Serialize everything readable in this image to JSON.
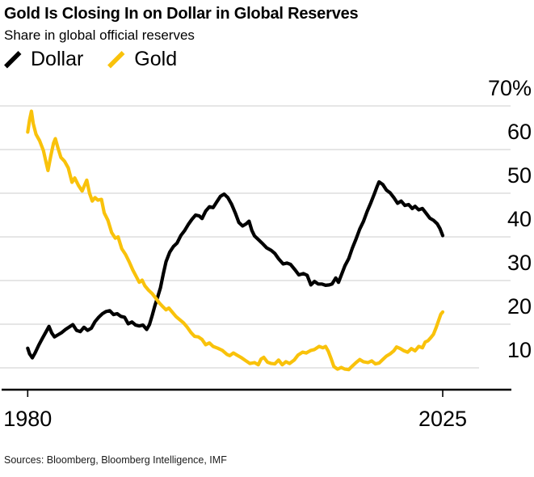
{
  "header": {
    "title": "Gold Is Closing In on Dollar in Global Reserves",
    "subtitle": "Share in global official reserves"
  },
  "legend": {
    "items": [
      {
        "label": "Dollar",
        "color": "#000000"
      },
      {
        "label": "Gold",
        "color": "#F9C20B"
      }
    ]
  },
  "chart_data": {
    "type": "line",
    "title": "Gold Is Closing In on Dollar in Global Reserves",
    "subtitle": "Share in global official reserves",
    "xlabel": "",
    "ylabel": "Share in global official reserves (%)",
    "x_domain": [
      1980,
      2025
    ],
    "y_baseline_value": 5,
    "y_gridline_values": [
      70,
      60,
      50,
      40,
      30,
      20,
      10
    ],
    "y_tick_labels": [
      "70%",
      "60",
      "50",
      "40",
      "30",
      "20",
      "10"
    ],
    "x_ticks": [
      {
        "year": 1980,
        "label": "1980"
      },
      {
        "year": 2025,
        "label": "2025"
      }
    ],
    "grid_on": true,
    "grid_color": "#DEDEDE",
    "axis_color": "#000000",
    "legend_position": "top-left",
    "series": [
      {
        "name": "Dollar",
        "color": "#000000",
        "points": [
          [
            1980.0,
            14.5
          ],
          [
            1980.2,
            13.2
          ],
          [
            1980.5,
            12.3
          ],
          [
            1980.8,
            13.4
          ],
          [
            1981.2,
            15.2
          ],
          [
            1981.6,
            16.8
          ],
          [
            1982.0,
            18.3
          ],
          [
            1982.3,
            19.5
          ],
          [
            1982.6,
            18.0
          ],
          [
            1982.9,
            17.1
          ],
          [
            1983.3,
            17.6
          ],
          [
            1983.7,
            18.1
          ],
          [
            1984.1,
            18.8
          ],
          [
            1984.6,
            19.5
          ],
          [
            1984.9,
            19.9
          ],
          [
            1985.3,
            18.6
          ],
          [
            1985.7,
            18.3
          ],
          [
            1986.1,
            19.3
          ],
          [
            1986.5,
            18.6
          ],
          [
            1986.9,
            19.1
          ],
          [
            1987.3,
            20.6
          ],
          [
            1987.7,
            21.6
          ],
          [
            1988.1,
            22.4
          ],
          [
            1988.5,
            22.9
          ],
          [
            1988.9,
            23.1
          ],
          [
            1989.3,
            22.2
          ],
          [
            1989.7,
            22.4
          ],
          [
            1990.1,
            21.8
          ],
          [
            1990.5,
            21.6
          ],
          [
            1990.9,
            20.1
          ],
          [
            1991.3,
            20.5
          ],
          [
            1991.7,
            19.8
          ],
          [
            1992.1,
            19.6
          ],
          [
            1992.5,
            19.8
          ],
          [
            1992.9,
            18.8
          ],
          [
            1993.2,
            19.9
          ],
          [
            1993.5,
            22.0
          ],
          [
            1993.8,
            24.3
          ],
          [
            1994.1,
            26.3
          ],
          [
            1994.4,
            28.4
          ],
          [
            1994.7,
            31.5
          ],
          [
            1995.0,
            34.3
          ],
          [
            1995.4,
            36.5
          ],
          [
            1995.8,
            37.8
          ],
          [
            1996.2,
            38.6
          ],
          [
            1996.6,
            40.3
          ],
          [
            1997.0,
            41.4
          ],
          [
            1997.4,
            42.8
          ],
          [
            1997.8,
            44.0
          ],
          [
            1998.2,
            45.0
          ],
          [
            1998.6,
            44.8
          ],
          [
            1998.9,
            44.2
          ],
          [
            1999.3,
            45.9
          ],
          [
            1999.7,
            46.9
          ],
          [
            2000.1,
            46.7
          ],
          [
            2000.5,
            48.0
          ],
          [
            2000.9,
            49.3
          ],
          [
            2001.3,
            49.8
          ],
          [
            2001.7,
            49.0
          ],
          [
            2002.1,
            47.5
          ],
          [
            2002.5,
            45.5
          ],
          [
            2002.9,
            43.3
          ],
          [
            2003.3,
            42.5
          ],
          [
            2003.7,
            43.0
          ],
          [
            2004.0,
            43.6
          ],
          [
            2004.3,
            41.5
          ],
          [
            2004.6,
            40.2
          ],
          [
            2005.0,
            39.4
          ],
          [
            2005.4,
            38.6
          ],
          [
            2005.9,
            37.5
          ],
          [
            2006.4,
            36.9
          ],
          [
            2006.8,
            36.2
          ],
          [
            2007.2,
            35.0
          ],
          [
            2007.7,
            33.8
          ],
          [
            2008.1,
            34.0
          ],
          [
            2008.5,
            33.7
          ],
          [
            2009.0,
            32.4
          ],
          [
            2009.4,
            31.3
          ],
          [
            2009.9,
            31.6
          ],
          [
            2010.3,
            31.2
          ],
          [
            2010.7,
            29.0
          ],
          [
            2011.1,
            29.8
          ],
          [
            2011.5,
            29.2
          ],
          [
            2011.9,
            29.2
          ],
          [
            2012.3,
            28.9
          ],
          [
            2012.7,
            29.0
          ],
          [
            2013.0,
            29.2
          ],
          [
            2013.4,
            30.6
          ],
          [
            2013.7,
            29.6
          ],
          [
            2014.0,
            31.2
          ],
          [
            2014.4,
            33.4
          ],
          [
            2014.8,
            35.0
          ],
          [
            2015.2,
            37.4
          ],
          [
            2015.6,
            39.5
          ],
          [
            2016.0,
            41.8
          ],
          [
            2016.4,
            43.5
          ],
          [
            2016.8,
            45.8
          ],
          [
            2017.2,
            47.8
          ],
          [
            2017.6,
            49.9
          ],
          [
            2017.9,
            51.6
          ],
          [
            2018.1,
            52.6
          ],
          [
            2018.5,
            52.0
          ],
          [
            2018.9,
            50.7
          ],
          [
            2019.3,
            50.1
          ],
          [
            2019.7,
            49.0
          ],
          [
            2020.1,
            47.7
          ],
          [
            2020.5,
            48.2
          ],
          [
            2020.9,
            47.2
          ],
          [
            2021.3,
            47.4
          ],
          [
            2021.7,
            46.5
          ],
          [
            2022.0,
            47.0
          ],
          [
            2022.4,
            46.2
          ],
          [
            2022.8,
            46.5
          ],
          [
            2023.2,
            45.4
          ],
          [
            2023.6,
            44.3
          ],
          [
            2024.0,
            43.8
          ],
          [
            2024.4,
            43.0
          ],
          [
            2024.7,
            41.9
          ],
          [
            2025.0,
            40.3
          ]
        ]
      },
      {
        "name": "Gold",
        "color": "#F9C20B",
        "points": [
          [
            1980.0,
            64.0
          ],
          [
            1980.2,
            66.8
          ],
          [
            1980.4,
            68.8
          ],
          [
            1980.6,
            66.0
          ],
          [
            1980.9,
            63.5
          ],
          [
            1981.3,
            62.0
          ],
          [
            1981.7,
            59.8
          ],
          [
            1982.0,
            57.0
          ],
          [
            1982.2,
            55.2
          ],
          [
            1982.5,
            58.5
          ],
          [
            1982.8,
            61.5
          ],
          [
            1983.0,
            62.5
          ],
          [
            1983.3,
            60.2
          ],
          [
            1983.6,
            58.2
          ],
          [
            1984.0,
            57.3
          ],
          [
            1984.4,
            55.8
          ],
          [
            1984.8,
            52.5
          ],
          [
            1985.1,
            53.5
          ],
          [
            1985.5,
            51.8
          ],
          [
            1985.9,
            50.5
          ],
          [
            1986.2,
            52.0
          ],
          [
            1986.4,
            53.0
          ],
          [
            1986.7,
            50.0
          ],
          [
            1987.0,
            48.2
          ],
          [
            1987.3,
            49.0
          ],
          [
            1987.6,
            48.4
          ],
          [
            1988.0,
            48.6
          ],
          [
            1988.3,
            45.5
          ],
          [
            1988.7,
            43.8
          ],
          [
            1989.1,
            41.0
          ],
          [
            1989.5,
            39.7
          ],
          [
            1989.8,
            40.0
          ],
          [
            1990.2,
            37.3
          ],
          [
            1990.6,
            36.0
          ],
          [
            1991.0,
            34.3
          ],
          [
            1991.4,
            32.4
          ],
          [
            1991.8,
            30.8
          ],
          [
            1992.1,
            29.6
          ],
          [
            1992.4,
            30.1
          ],
          [
            1992.7,
            28.8
          ],
          [
            1993.1,
            27.8
          ],
          [
            1993.5,
            27.0
          ],
          [
            1993.9,
            25.9
          ],
          [
            1994.3,
            24.8
          ],
          [
            1994.7,
            23.9
          ],
          [
            1995.0,
            23.3
          ],
          [
            1995.3,
            23.7
          ],
          [
            1995.7,
            22.7
          ],
          [
            1996.1,
            21.7
          ],
          [
            1996.5,
            21.0
          ],
          [
            1996.9,
            20.3
          ],
          [
            1997.3,
            19.3
          ],
          [
            1997.7,
            18.1
          ],
          [
            1998.1,
            17.2
          ],
          [
            1998.5,
            17.1
          ],
          [
            1998.9,
            16.5
          ],
          [
            1999.3,
            15.3
          ],
          [
            1999.7,
            15.7
          ],
          [
            2000.1,
            14.9
          ],
          [
            2000.6,
            14.5
          ],
          [
            2001.1,
            14.0
          ],
          [
            2001.6,
            13.1
          ],
          [
            2001.9,
            12.8
          ],
          [
            2002.3,
            13.4
          ],
          [
            2002.7,
            12.9
          ],
          [
            2003.2,
            12.3
          ],
          [
            2003.6,
            11.7
          ],
          [
            2004.1,
            11.0
          ],
          [
            2004.6,
            11.2
          ],
          [
            2005.0,
            10.7
          ],
          [
            2005.3,
            12.0
          ],
          [
            2005.6,
            12.4
          ],
          [
            2006.0,
            11.3
          ],
          [
            2006.4,
            11.0
          ],
          [
            2006.8,
            10.9
          ],
          [
            2007.2,
            11.8
          ],
          [
            2007.6,
            10.7
          ],
          [
            2008.0,
            11.4
          ],
          [
            2008.4,
            11.0
          ],
          [
            2008.9,
            11.8
          ],
          [
            2009.3,
            12.9
          ],
          [
            2009.8,
            13.6
          ],
          [
            2010.2,
            13.4
          ],
          [
            2010.7,
            14.0
          ],
          [
            2011.1,
            14.2
          ],
          [
            2011.6,
            14.9
          ],
          [
            2012.0,
            14.6
          ],
          [
            2012.3,
            14.9
          ],
          [
            2012.6,
            13.8
          ],
          [
            2012.9,
            12.1
          ],
          [
            2013.2,
            10.3
          ],
          [
            2013.6,
            9.7
          ],
          [
            2014.0,
            10.1
          ],
          [
            2014.4,
            9.7
          ],
          [
            2014.8,
            9.6
          ],
          [
            2015.2,
            10.4
          ],
          [
            2015.6,
            11.2
          ],
          [
            2016.0,
            11.9
          ],
          [
            2016.4,
            11.4
          ],
          [
            2016.9,
            11.2
          ],
          [
            2017.3,
            11.6
          ],
          [
            2017.7,
            10.9
          ],
          [
            2018.1,
            11.1
          ],
          [
            2018.5,
            11.9
          ],
          [
            2018.9,
            12.7
          ],
          [
            2019.3,
            13.2
          ],
          [
            2019.7,
            13.9
          ],
          [
            2020.0,
            14.8
          ],
          [
            2020.4,
            14.4
          ],
          [
            2020.8,
            13.9
          ],
          [
            2021.2,
            13.6
          ],
          [
            2021.6,
            14.4
          ],
          [
            2022.0,
            13.9
          ],
          [
            2022.4,
            14.9
          ],
          [
            2022.8,
            14.6
          ],
          [
            2023.1,
            15.9
          ],
          [
            2023.4,
            16.2
          ],
          [
            2023.7,
            16.9
          ],
          [
            2024.0,
            17.7
          ],
          [
            2024.3,
            19.3
          ],
          [
            2024.6,
            21.1
          ],
          [
            2024.8,
            22.3
          ],
          [
            2025.0,
            22.8
          ]
        ]
      }
    ]
  },
  "footer": {
    "source": "Sources: Bloomberg, Bloomberg Intelligence, IMF"
  }
}
